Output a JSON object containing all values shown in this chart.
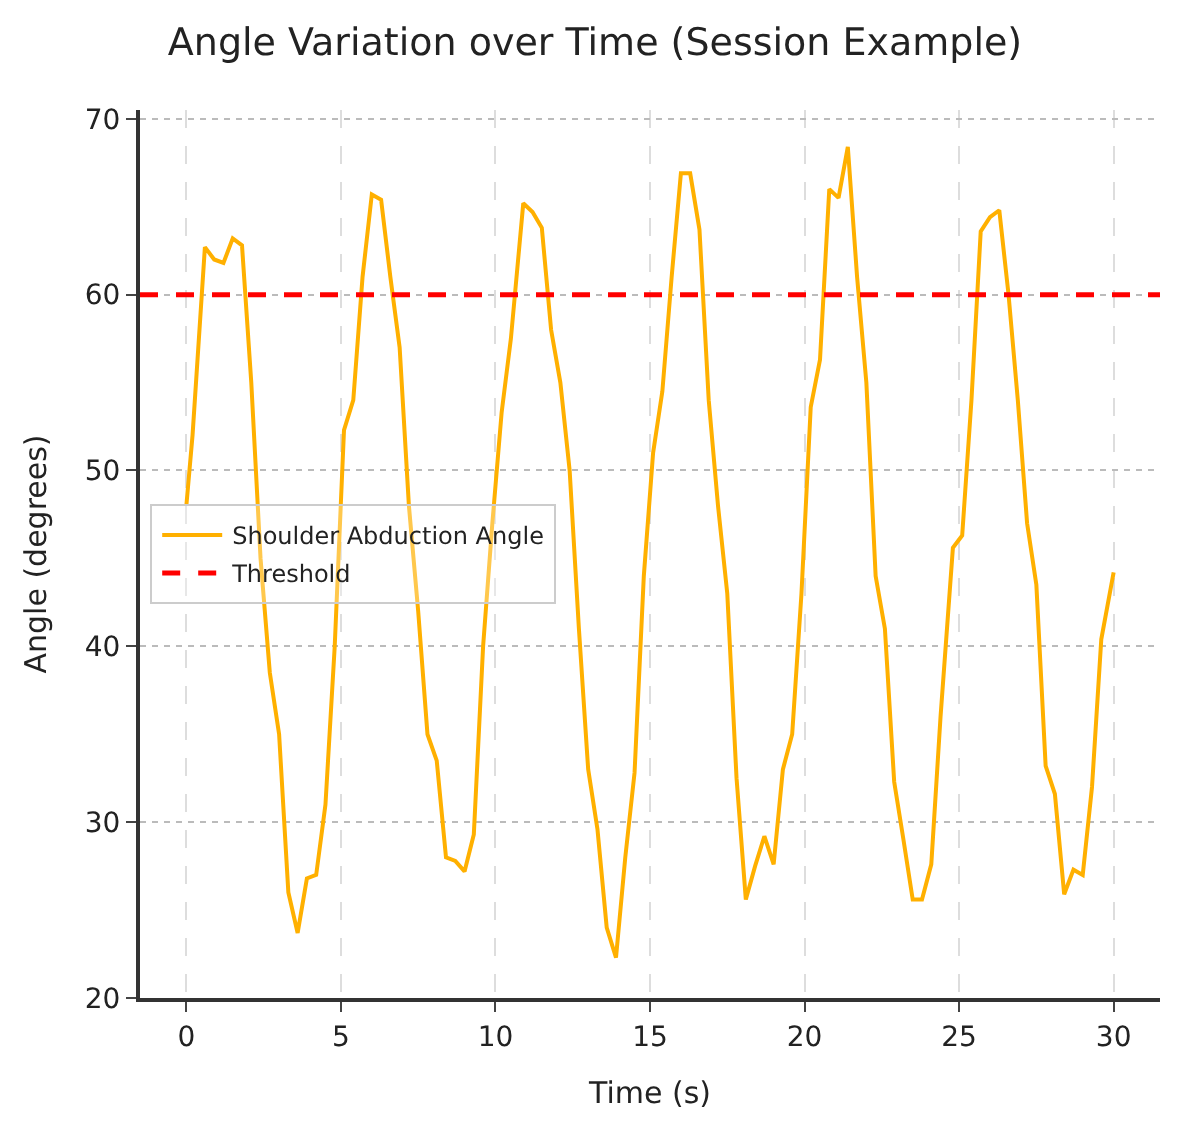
{
  "chart_data": {
    "type": "line",
    "title": "Angle Variation over Time (Session Example)",
    "xlabel": "Time (s)",
    "ylabel": "Angle (degrees)",
    "xlim": [
      -1.5,
      31.5
    ],
    "ylim": [
      20,
      70.5
    ],
    "xticks": [
      0,
      5,
      10,
      15,
      20,
      25,
      30
    ],
    "yticks": [
      20,
      30,
      40,
      50,
      60,
      70
    ],
    "grid": true,
    "legend": "left",
    "series": [
      {
        "name": "Shoulder Abduction Angle",
        "color": "#ffb000",
        "x": [
          0,
          0.2,
          0.6,
          0.9,
          1.2,
          1.5,
          1.8,
          2.1,
          2.4,
          2.7,
          3.0,
          3.3,
          3.6,
          3.9,
          4.2,
          4.5,
          4.8,
          5.1,
          5.4,
          5.7,
          6.0,
          6.3,
          6.6,
          6.9,
          7.2,
          7.5,
          7.8,
          8.1,
          8.4,
          8.7,
          9.0,
          9.3,
          9.6,
          9.9,
          10.2,
          10.5,
          10.9,
          11.2,
          11.5,
          11.8,
          12.1,
          12.4,
          12.7,
          13.0,
          13.3,
          13.6,
          13.9,
          14.2,
          14.5,
          14.8,
          15.1,
          15.4,
          15.7,
          16.0,
          16.3,
          16.6,
          16.9,
          17.2,
          17.5,
          17.8,
          18.1,
          18.4,
          18.7,
          19.0,
          19.3,
          19.6,
          19.9,
          20.2,
          20.5,
          20.8,
          21.1,
          21.4,
          21.7,
          22.0,
          22.3,
          22.6,
          22.9,
          23.2,
          23.5,
          23.8,
          24.1,
          24.4,
          24.8,
          25.1,
          25.4,
          25.7,
          26.0,
          26.3,
          26.6,
          26.9,
          27.2,
          27.5,
          27.8,
          28.1,
          28.4,
          28.7,
          29.0,
          29.3,
          29.6,
          30.0
        ],
        "values": [
          48,
          52,
          62.7,
          62,
          61.8,
          63.2,
          62.8,
          55,
          45,
          38.5,
          35,
          26,
          23.7,
          26.8,
          27,
          31,
          40,
          52.3,
          54,
          61,
          65.7,
          65.4,
          61,
          57,
          48,
          42,
          35,
          33.5,
          28,
          27.8,
          27.2,
          29.3,
          40,
          47,
          53.3,
          57.5,
          65.2,
          64.7,
          63.8,
          58,
          55,
          50,
          41,
          33,
          29.6,
          24,
          22.3,
          28,
          32.8,
          44,
          51,
          54.5,
          61,
          66.9,
          66.9,
          63.7,
          54,
          48,
          43,
          32.5,
          25.6,
          27.5,
          29.2,
          27.6,
          33,
          35,
          43,
          53.6,
          56.3,
          66,
          65.5,
          68.4,
          61,
          55,
          44,
          41,
          32.3,
          29,
          25.6,
          25.6,
          27.6,
          36,
          45.6,
          46.3,
          54,
          63.6,
          64.4,
          64.8,
          60,
          54,
          47,
          43.5,
          33.2,
          31.6,
          25.9,
          27.3,
          27,
          32,
          40.4,
          44.2
        ]
      }
    ],
    "ref_lines": [
      {
        "axis": "y",
        "value": 60,
        "label": "Threshold",
        "color": "#ff0000",
        "line_style": "dashed"
      }
    ]
  }
}
